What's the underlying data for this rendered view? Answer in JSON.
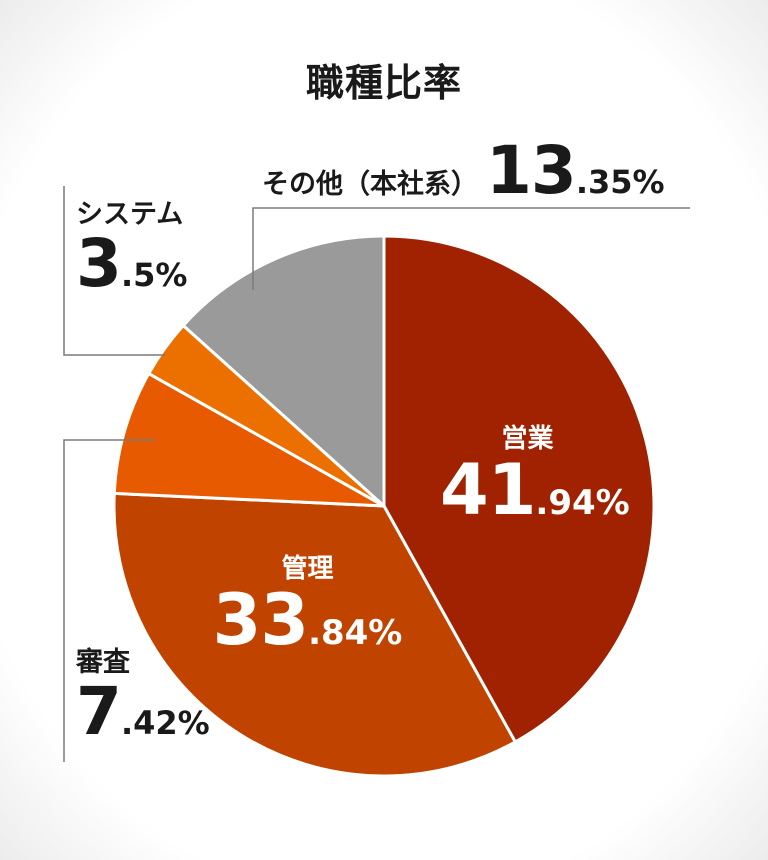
{
  "title": "職種比率",
  "chart_data": {
    "type": "pie",
    "title": "職種比率",
    "start_angle_deg": 0,
    "direction": "clockwise",
    "slices": [
      {
        "label": "営業",
        "value": 41.94,
        "int": "41",
        "dec": ".94%",
        "color": "#a02200"
      },
      {
        "label": "管理",
        "value": 33.84,
        "int": "33",
        "dec": ".84%",
        "color": "#c04400"
      },
      {
        "label": "審査",
        "value": 7.42,
        "int": "7",
        "dec": ".42%",
        "color": "#e85a00"
      },
      {
        "label": "システム",
        "value": 3.5,
        "int": "3",
        "dec": ".5%",
        "color": "#ec7000"
      },
      {
        "label": "その他（本社系）",
        "value": 13.35,
        "int": "13",
        "dec": ".35%",
        "color": "#9a9a9a"
      }
    ]
  }
}
